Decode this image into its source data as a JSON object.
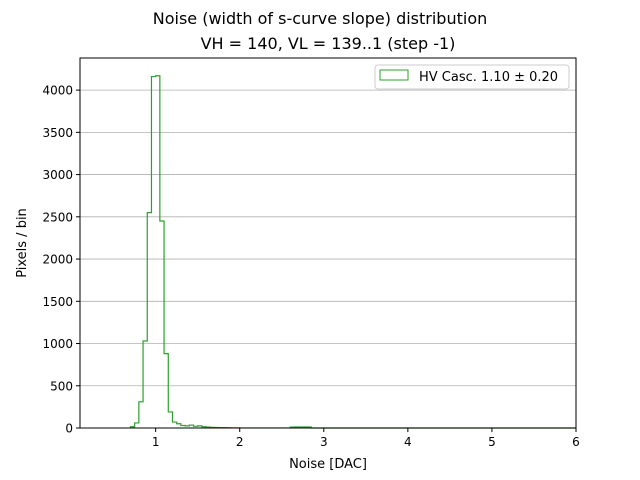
{
  "chart_data": {
    "type": "histogram",
    "title_line1": "Noise (width of s-curve slope) distribution",
    "title_line2": "VH = 140, VL = 139..1 (step -1)",
    "xlabel": "Noise [DAC]",
    "ylabel": "Pixels / bin",
    "xlim": [
      0.1,
      6.0
    ],
    "ylim": [
      0,
      4380
    ],
    "xticks": [
      1,
      2,
      3,
      4,
      5,
      6
    ],
    "yticks": [
      0,
      500,
      1000,
      1500,
      2000,
      2500,
      3000,
      3500,
      4000
    ],
    "grid": "y",
    "legend": {
      "placement": "upper-right",
      "label": "HV Casc. 1.10 ± 0.20"
    },
    "series": [
      {
        "label": "HV Casc. 1.10 ± 0.20",
        "color": "#2ca02c",
        "bin_edges": [
          0.7,
          0.75,
          0.8,
          0.85,
          0.9,
          0.95,
          1.0,
          1.05,
          1.1,
          1.15,
          1.2,
          1.25,
          1.3,
          1.35,
          1.4,
          1.45,
          1.5,
          1.55,
          1.6,
          1.65,
          1.7,
          1.75,
          1.8,
          1.85,
          1.9,
          1.95,
          2.0,
          2.05,
          2.1,
          2.15,
          2.2,
          2.25,
          2.3,
          2.35,
          2.4,
          2.45,
          2.5,
          2.55,
          2.6,
          2.65,
          2.7,
          2.75,
          2.8,
          2.85,
          2.9,
          2.95,
          3.0,
          3.05,
          3.1,
          3.15,
          3.2,
          3.25,
          3.3,
          3.35,
          3.4,
          3.45,
          3.5,
          3.55,
          3.6,
          3.65,
          3.7,
          3.75,
          3.8,
          3.85,
          3.9,
          3.95,
          4.0,
          4.05,
          4.1,
          4.15,
          4.2,
          4.25,
          4.3,
          4.35,
          4.4,
          4.45,
          4.5,
          4.55,
          4.6,
          4.65,
          4.7,
          4.75,
          4.8,
          4.85,
          4.9,
          4.95,
          5.0,
          5.05,
          5.1,
          5.15,
          5.2,
          5.25,
          5.3,
          5.35,
          5.4,
          5.45,
          5.5,
          5.55,
          5.6,
          5.65,
          5.7,
          5.75,
          5.8,
          5.85,
          5.9,
          5.95,
          6.0
        ],
        "counts": [
          15,
          60,
          310,
          1030,
          2550,
          4160,
          4170,
          2450,
          880,
          190,
          70,
          50,
          30,
          25,
          35,
          20,
          25,
          15,
          10,
          8,
          6,
          5,
          4,
          3,
          2,
          2,
          1,
          1,
          1,
          1,
          1,
          1,
          1,
          1,
          1,
          1,
          1,
          1,
          10,
          12,
          12,
          12,
          12,
          0,
          0,
          0,
          0,
          0,
          0,
          0,
          0,
          0,
          0,
          0,
          0,
          0,
          0,
          0,
          0,
          0,
          0,
          0,
          0,
          0,
          0,
          0,
          0,
          0,
          0,
          0,
          0,
          0,
          0,
          0,
          0,
          0,
          0,
          0,
          0,
          0,
          0,
          0,
          0,
          0,
          0,
          0,
          0,
          0,
          0,
          0,
          0,
          0,
          0,
          0,
          0,
          0,
          0,
          0,
          0,
          0,
          0,
          0,
          0,
          0,
          0,
          0
        ]
      }
    ]
  }
}
